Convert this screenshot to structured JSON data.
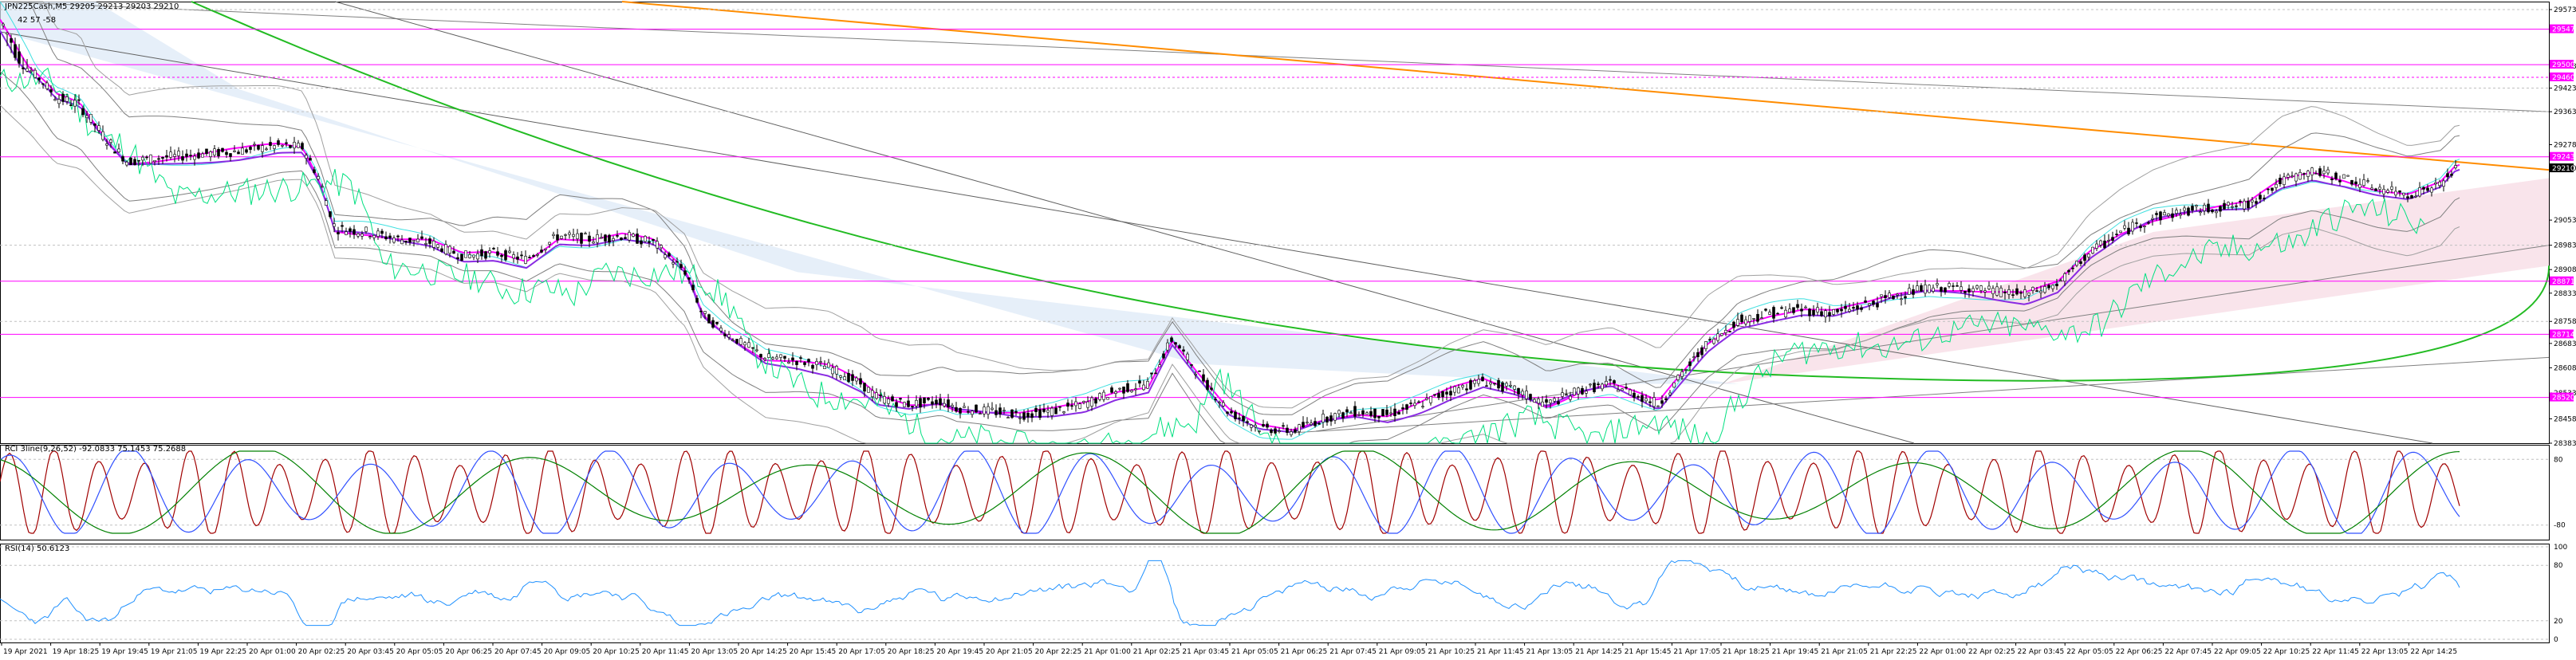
{
  "header": {
    "symbol_title": "JPN225Cash,M5  29205 29213 29203 29210",
    "indicator_values": "42   57   -58"
  },
  "rci": {
    "label": "RCI 3line(9,26,52) -92.0833 75.1453 75.2688"
  },
  "rsi": {
    "label": "RSI(14) 50.6123"
  },
  "colors": {
    "candle_up": "#000000",
    "candle_down": "#000000",
    "ema_fast": "#ff00ff",
    "ema_slow": "#8a2be2",
    "bb": "#7f7f7f",
    "lagging": "#00e080",
    "cyan": "#40e0e0",
    "ma_long_green": "#22bb22",
    "ma_long_orange": "#ff8c00",
    "hline_magenta": "#ff00ff",
    "fill_blue": "#dbe8f7",
    "fill_pink": "#f7dde6",
    "rci_red": "#a00000",
    "rci_blue": "#3050ff",
    "rci_green": "#008000",
    "rsi_line": "#1e90ff"
  },
  "chart_data": [
    {
      "type": "candlestick",
      "title": "JPN225Cash,M5",
      "ohlc_current": {
        "open": 29205,
        "high": 29213,
        "low": 29203,
        "close": 29210
      },
      "y_ticks": [
        29573,
        29498,
        29423,
        29363,
        29278,
        29210,
        29053,
        28983,
        28908,
        28833,
        28758,
        28683,
        28608,
        28533,
        28458,
        28383
      ],
      "ylim": [
        28383,
        29590
      ],
      "price_labels_right": [
        "29210",
        "29547",
        "29500",
        "29460",
        "29243",
        "28871",
        "28714",
        "28520"
      ],
      "horizontal_levels": [
        29547,
        29500,
        29460,
        29243,
        28871,
        28714,
        28520
      ],
      "x_labels": [
        "19 Apr 2021",
        "19 Apr 18:25",
        "19 Apr 19:45",
        "19 Apr 21:05",
        "19 Apr 22:25",
        "20 Apr 01:00",
        "20 Apr 02:25",
        "20 Apr 03:45",
        "20 Apr 05:05",
        "20 Apr 06:25",
        "20 Apr 07:45",
        "20 Apr 09:05",
        "20 Apr 10:25",
        "20 Apr 11:45",
        "20 Apr 13:05",
        "20 Apr 14:25",
        "20 Apr 15:45",
        "20 Apr 17:05",
        "20 Apr 18:25",
        "20 Apr 19:45",
        "20 Apr 21:05",
        "20 Apr 22:25",
        "21 Apr 01:00",
        "21 Apr 02:25",
        "21 Apr 03:45",
        "21 Apr 05:05",
        "21 Apr 06:25",
        "21 Apr 07:45",
        "21 Apr 09:05",
        "21 Apr 10:25",
        "21 Apr 11:45",
        "21 Apr 13:05",
        "21 Apr 14:25",
        "21 Apr 15:45",
        "21 Apr 17:05",
        "21 Apr 18:25",
        "21 Apr 19:45",
        "21 Apr 21:05",
        "21 Apr 22:25",
        "22 Apr 01:00",
        "22 Apr 02:25",
        "22 Apr 03:45",
        "22 Apr 05:05",
        "22 Apr 06:25",
        "22 Apr 07:45",
        "22 Apr 09:05",
        "22 Apr 10:25",
        "22 Apr 11:45",
        "22 Apr 13:05",
        "22 Apr 14:25"
      ],
      "close_path": [
        [
          0,
          29560
        ],
        [
          40,
          29480
        ],
        [
          70,
          29400
        ],
        [
          100,
          29380
        ],
        [
          130,
          29300
        ],
        [
          160,
          29230
        ],
        [
          200,
          29240
        ],
        [
          250,
          29250
        ],
        [
          300,
          29260
        ],
        [
          350,
          29275
        ],
        [
          380,
          29270
        ],
        [
          400,
          29180
        ],
        [
          420,
          29030
        ],
        [
          460,
          29020
        ],
        [
          500,
          29000
        ],
        [
          540,
          28990
        ],
        [
          580,
          28950
        ],
        [
          620,
          28960
        ],
        [
          660,
          28940
        ],
        [
          700,
          29010
        ],
        [
          740,
          29000
        ],
        [
          780,
          29010
        ],
        [
          820,
          28990
        ],
        [
          860,
          28900
        ],
        [
          880,
          28780
        ],
        [
          920,
          28700
        ],
        [
          960,
          28640
        ],
        [
          1000,
          28630
        ],
        [
          1040,
          28610
        ],
        [
          1080,
          28560
        ],
        [
          1100,
          28520
        ],
        [
          1140,
          28500
        ],
        [
          1180,
          28510
        ],
        [
          1200,
          28490
        ],
        [
          1240,
          28480
        ],
        [
          1280,
          28470
        ],
        [
          1320,
          28480
        ],
        [
          1360,
          28500
        ],
        [
          1400,
          28540
        ],
        [
          1440,
          28560
        ],
        [
          1470,
          28700
        ],
        [
          1500,
          28600
        ],
        [
          1540,
          28480
        ],
        [
          1580,
          28430
        ],
        [
          1620,
          28420
        ],
        [
          1660,
          28460
        ],
        [
          1700,
          28480
        ],
        [
          1740,
          28470
        ],
        [
          1780,
          28500
        ],
        [
          1820,
          28540
        ],
        [
          1860,
          28570
        ],
        [
          1900,
          28540
        ],
        [
          1940,
          28500
        ],
        [
          1980,
          28540
        ],
        [
          2020,
          28560
        ],
        [
          2060,
          28520
        ],
        [
          2080,
          28500
        ],
        [
          2100,
          28560
        ],
        [
          2140,
          28680
        ],
        [
          2180,
          28760
        ],
        [
          2220,
          28780
        ],
        [
          2260,
          28790
        ],
        [
          2300,
          28780
        ],
        [
          2340,
          28800
        ],
        [
          2380,
          28830
        ],
        [
          2420,
          28850
        ],
        [
          2460,
          28850
        ],
        [
          2500,
          28840
        ],
        [
          2540,
          28830
        ],
        [
          2580,
          28860
        ],
        [
          2620,
          28960
        ],
        [
          2660,
          29020
        ],
        [
          2700,
          29060
        ],
        [
          2740,
          29080
        ],
        [
          2780,
          29090
        ],
        [
          2820,
          29100
        ],
        [
          2860,
          29170
        ],
        [
          2900,
          29200
        ],
        [
          2940,
          29180
        ],
        [
          2980,
          29150
        ],
        [
          3020,
          29130
        ],
        [
          3060,
          29160
        ],
        [
          3080,
          29210
        ]
      ]
    },
    {
      "type": "line",
      "title": "RCI 3line(9,26,52)",
      "series_values": [
        -92.0833,
        75.1453,
        75.2688
      ],
      "y_ticks": [
        80,
        -80
      ],
      "ylim": [
        -100,
        100
      ]
    },
    {
      "type": "line",
      "title": "RSI(14)",
      "latest_value": 50.6123,
      "y_ticks": [
        100,
        80,
        20,
        0
      ],
      "ylim": [
        0,
        100
      ]
    }
  ]
}
